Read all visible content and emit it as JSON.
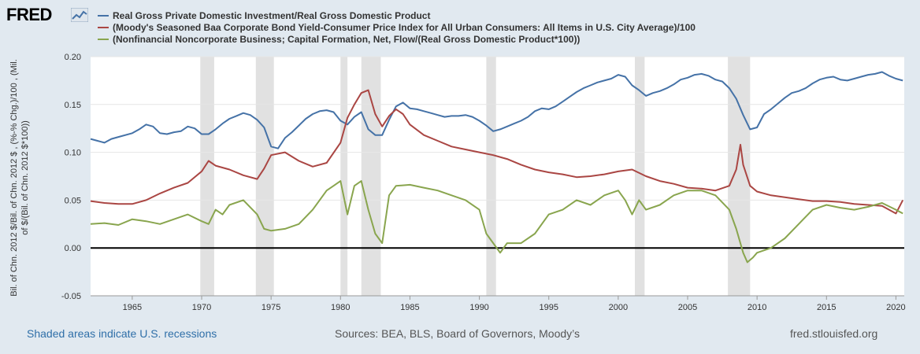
{
  "brand": {
    "name": "FRED",
    "logo_icon": "trend-graph-icon"
  },
  "chart_data": {
    "type": "line",
    "x_range": [
      1962,
      2020.6
    ],
    "ylim": [
      -0.05,
      0.2
    ],
    "y_ticks": [
      -0.05,
      0.0,
      0.05,
      0.1,
      0.15,
      0.2
    ],
    "y_tick_labels": [
      "-0.05",
      "0.00",
      "0.05",
      "0.10",
      "0.15",
      "0.20"
    ],
    "x_ticks": [
      1965,
      1970,
      1975,
      1980,
      1985,
      1990,
      1995,
      2000,
      2005,
      2010,
      2015,
      2020
    ],
    "x_tick_labels": [
      "1965",
      "1970",
      "1975",
      "1980",
      "1985",
      "1990",
      "1995",
      "2000",
      "2005",
      "2010",
      "2015",
      "2020"
    ],
    "ylabel_lines": [
      "Bil. of Chn. 2012 $/Bil. of Chn. 2012 $ , (%-% Chg.)/100 , (Mil.",
      "of $/(Bil. of Chn. 2012 $*100))"
    ],
    "grid": true,
    "zero_line": 0,
    "legend_position": "top-left",
    "recessions": [
      [
        1969.9,
        1970.9
      ],
      [
        1973.9,
        1975.2
      ],
      [
        1980.0,
        1980.5
      ],
      [
        1981.5,
        1982.9
      ],
      [
        1990.5,
        1991.2
      ],
      [
        2001.2,
        2001.9
      ],
      [
        2007.9,
        2009.5
      ]
    ],
    "recession_color": "#e1e1e1",
    "series": [
      {
        "name": "Real Gross Private Domestic Investment/Real Gross Domestic Product",
        "color": "#4572a7",
        "x": [
          1962,
          1962.5,
          1963,
          1963.5,
          1964,
          1965,
          1965.5,
          1966,
          1966.5,
          1967,
          1967.5,
          1968,
          1968.5,
          1969,
          1969.5,
          1970,
          1970.5,
          1971,
          1971.5,
          1972,
          1972.5,
          1973,
          1973.5,
          1974,
          1974.5,
          1975,
          1975.5,
          1976,
          1976.5,
          1977,
          1977.5,
          1978,
          1978.5,
          1979,
          1979.5,
          1980,
          1980.5,
          1981,
          1981.5,
          1982,
          1982.5,
          1983,
          1983.5,
          1984,
          1984.5,
          1985,
          1985.5,
          1986,
          1986.5,
          1987,
          1987.5,
          1988,
          1988.5,
          1989,
          1989.5,
          1990,
          1990.5,
          1991,
          1991.5,
          1992,
          1992.5,
          1993,
          1993.5,
          1994,
          1994.5,
          1995,
          1995.5,
          1996,
          1996.5,
          1997,
          1997.5,
          1998,
          1998.5,
          1999,
          1999.5,
          2000,
          2000.5,
          2001,
          2001.5,
          2002,
          2002.5,
          2003,
          2003.5,
          2004,
          2004.5,
          2005,
          2005.5,
          2006,
          2006.5,
          2007,
          2007.5,
          2008,
          2008.5,
          2009,
          2009.5,
          2010,
          2010.5,
          2011,
          2011.5,
          2012,
          2012.5,
          2013,
          2013.5,
          2014,
          2014.5,
          2015,
          2015.5,
          2016,
          2016.5,
          2017,
          2017.5,
          2018,
          2018.5,
          2019,
          2019.5,
          2020,
          2020.5
        ],
        "values": [
          0.114,
          0.112,
          0.11,
          0.114,
          0.116,
          0.12,
          0.124,
          0.129,
          0.127,
          0.12,
          0.119,
          0.121,
          0.122,
          0.127,
          0.125,
          0.119,
          0.119,
          0.124,
          0.13,
          0.135,
          0.138,
          0.141,
          0.139,
          0.134,
          0.126,
          0.106,
          0.104,
          0.115,
          0.121,
          0.128,
          0.135,
          0.14,
          0.143,
          0.144,
          0.142,
          0.133,
          0.129,
          0.137,
          0.142,
          0.124,
          0.118,
          0.118,
          0.134,
          0.148,
          0.152,
          0.146,
          0.145,
          0.143,
          0.141,
          0.139,
          0.137,
          0.138,
          0.138,
          0.139,
          0.137,
          0.133,
          0.128,
          0.122,
          0.124,
          0.127,
          0.13,
          0.133,
          0.137,
          0.143,
          0.146,
          0.145,
          0.148,
          0.153,
          0.158,
          0.163,
          0.167,
          0.17,
          0.173,
          0.175,
          0.177,
          0.181,
          0.179,
          0.17,
          0.165,
          0.159,
          0.162,
          0.164,
          0.167,
          0.171,
          0.176,
          0.178,
          0.181,
          0.182,
          0.18,
          0.176,
          0.174,
          0.167,
          0.156,
          0.139,
          0.124,
          0.126,
          0.14,
          0.145,
          0.151,
          0.157,
          0.162,
          0.164,
          0.167,
          0.172,
          0.176,
          0.178,
          0.179,
          0.176,
          0.175,
          0.177,
          0.179,
          0.181,
          0.182,
          0.184,
          0.18,
          0.177,
          0.175
        ]
      },
      {
        "name": "(Moody's Seasoned Baa Corporate Bond Yield-Consumer Price Index for All Urban Consumers: All Items in U.S. City Average)/100",
        "color": "#aa4643",
        "x": [
          1962,
          1963,
          1964,
          1965,
          1966,
          1967,
          1968,
          1969,
          1970,
          1970.5,
          1971,
          1972,
          1973,
          1974,
          1974.5,
          1975,
          1976,
          1977,
          1978,
          1979,
          1980,
          1980.5,
          1981,
          1981.5,
          1982,
          1982.5,
          1983,
          1983.5,
          1984,
          1984.5,
          1985,
          1986,
          1987,
          1988,
          1989,
          1990,
          1991,
          1992,
          1993,
          1994,
          1995,
          1996,
          1997,
          1998,
          1999,
          2000,
          2001,
          2002,
          2003,
          2004,
          2005,
          2006,
          2007,
          2008,
          2008.5,
          2008.8,
          2009,
          2009.5,
          2010,
          2011,
          2012,
          2013,
          2014,
          2015,
          2016,
          2017,
          2018,
          2019,
          2020,
          2020.5
        ],
        "values": [
          0.049,
          0.047,
          0.046,
          0.046,
          0.05,
          0.057,
          0.063,
          0.068,
          0.08,
          0.091,
          0.086,
          0.082,
          0.076,
          0.072,
          0.083,
          0.097,
          0.1,
          0.091,
          0.085,
          0.089,
          0.11,
          0.136,
          0.15,
          0.162,
          0.165,
          0.14,
          0.127,
          0.138,
          0.145,
          0.14,
          0.129,
          0.118,
          0.112,
          0.106,
          0.103,
          0.1,
          0.097,
          0.093,
          0.087,
          0.082,
          0.079,
          0.077,
          0.074,
          0.075,
          0.077,
          0.08,
          0.082,
          0.075,
          0.07,
          0.067,
          0.063,
          0.062,
          0.06,
          0.065,
          0.082,
          0.108,
          0.087,
          0.065,
          0.059,
          0.055,
          0.053,
          0.051,
          0.049,
          0.049,
          0.048,
          0.046,
          0.045,
          0.044,
          0.036,
          0.05
        ]
      },
      {
        "name": "(Nonfinancial Noncorporate Business; Capital Formation, Net, Flow/(Real Gross Domestic Product*100))",
        "color": "#89a54e",
        "x": [
          1962,
          1963,
          1964,
          1965,
          1966,
          1967,
          1968,
          1969,
          1970,
          1970.5,
          1971,
          1971.5,
          1972,
          1973,
          1974,
          1974.5,
          1975,
          1976,
          1977,
          1978,
          1979,
          1979.5,
          1980,
          1980.5,
          1981,
          1981.5,
          1982,
          1982.5,
          1983,
          1983.5,
          1984,
          1985,
          1986,
          1987,
          1988,
          1989,
          1990,
          1990.5,
          1991,
          1991.5,
          1992,
          1993,
          1994,
          1995,
          1996,
          1997,
          1998,
          1999,
          2000,
          2000.5,
          2001,
          2001.5,
          2002,
          2003,
          2004,
          2005,
          2006,
          2007,
          2008,
          2008.5,
          2009,
          2009.3,
          2009.7,
          2010,
          2011,
          2012,
          2013,
          2014,
          2015,
          2016,
          2017,
          2018,
          2019,
          2020,
          2020.5
        ],
        "values": [
          0.025,
          0.026,
          0.024,
          0.03,
          0.028,
          0.025,
          0.03,
          0.035,
          0.028,
          0.025,
          0.04,
          0.035,
          0.045,
          0.05,
          0.035,
          0.02,
          0.018,
          0.02,
          0.025,
          0.04,
          0.06,
          0.065,
          0.07,
          0.035,
          0.065,
          0.07,
          0.04,
          0.015,
          0.005,
          0.055,
          0.065,
          0.066,
          0.063,
          0.06,
          0.055,
          0.05,
          0.04,
          0.015,
          0.005,
          -0.005,
          0.005,
          0.005,
          0.015,
          0.035,
          0.04,
          0.05,
          0.045,
          0.055,
          0.06,
          0.05,
          0.035,
          0.05,
          0.04,
          0.045,
          0.055,
          0.06,
          0.06,
          0.055,
          0.04,
          0.02,
          -0.005,
          -0.015,
          -0.01,
          -0.005,
          0.0,
          0.01,
          0.025,
          0.04,
          0.045,
          0.042,
          0.04,
          0.043,
          0.047,
          0.04,
          0.036
        ]
      }
    ]
  },
  "footer": {
    "recession_note": "Shaded areas indicate U.S. recessions",
    "sources": "Sources: BEA, BLS, Board of Governors, Moody’s",
    "site": "fred.stlouisfed.org"
  }
}
